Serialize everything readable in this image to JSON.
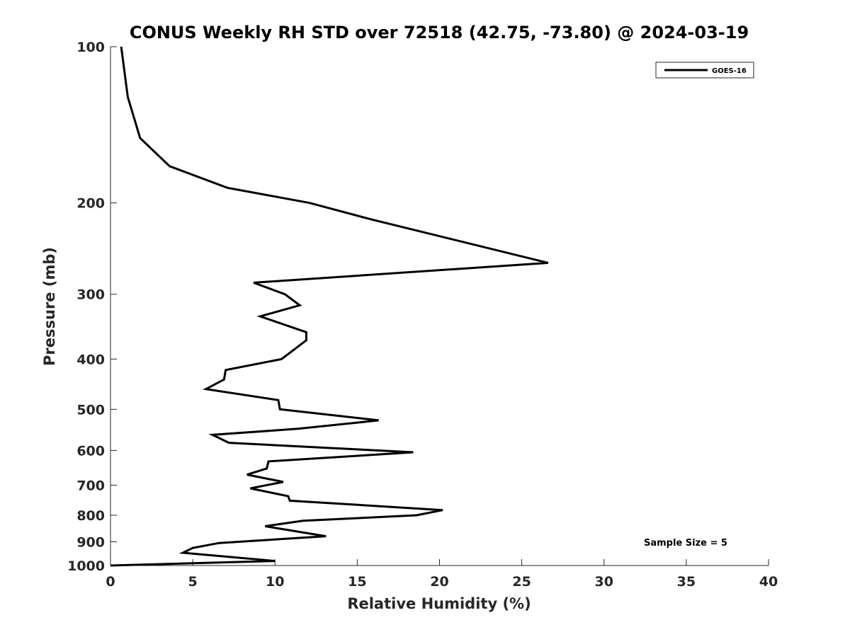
{
  "chart_data": {
    "type": "line",
    "title": "CONUS Weekly RH STD over 72518 (42.75, -73.80) @ 2024-03-19",
    "xlabel": "Relative Humidity (%)",
    "ylabel": "Pressure (mb)",
    "xlim": [
      0,
      40
    ],
    "ylim": [
      100,
      1000
    ],
    "yscale": "log",
    "y_reversed": true,
    "xticks": [
      0,
      5,
      10,
      15,
      20,
      25,
      30,
      35,
      40
    ],
    "xtick_labels": [
      "0",
      "5",
      "10",
      "15",
      "20",
      "25",
      "30",
      "35",
      "40"
    ],
    "yticks": [
      100,
      200,
      300,
      400,
      500,
      600,
      700,
      800,
      900,
      1000
    ],
    "ytick_labels": [
      "100",
      "200",
      "300",
      "400",
      "500",
      "600",
      "700",
      "800",
      "900",
      "1000"
    ],
    "grid": false,
    "legend": {
      "position": "top-right",
      "entries": [
        "GOES-16"
      ]
    },
    "annotation": "Sample Size = 5",
    "series": [
      {
        "name": "GOES-16",
        "color": "#000000",
        "x": [
          0.65,
          1.05,
          1.8,
          3.6,
          7.1,
          12.1,
          15.8,
          26.6,
          8.7,
          10.6,
          11.5,
          9.1,
          11.9,
          11.9,
          10.4,
          7.0,
          6.9,
          5.8,
          10.2,
          10.3,
          16.3,
          11.4,
          6.2,
          7.2,
          18.4,
          9.6,
          9.5,
          8.3,
          10.5,
          8.5,
          10.8,
          10.9,
          20.2,
          18.6,
          11.7,
          9.4,
          13.1,
          6.6,
          5.0,
          4.4,
          10.0,
          0.0
        ],
        "y": [
          100,
          125,
          150,
          170,
          187,
          200,
          215,
          261,
          285,
          300,
          315,
          331,
          355,
          368,
          400,
          420,
          438,
          457,
          480,
          500,
          525,
          545,
          560,
          580,
          605,
          630,
          650,
          668,
          690,
          710,
          735,
          750,
          782,
          800,
          820,
          840,
          878,
          905,
          925,
          945,
          980,
          1000
        ]
      }
    ]
  }
}
